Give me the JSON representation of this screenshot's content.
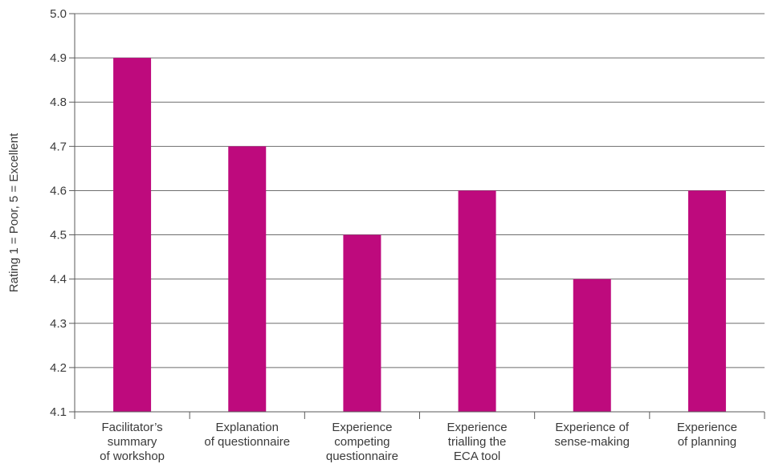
{
  "chart_data": {
    "type": "bar",
    "title": "",
    "xlabel": "",
    "ylabel": "Rating 1 = Poor, 5 = Excellent",
    "categories": [
      [
        "Facilitator’s",
        "summary",
        "of workshop"
      ],
      [
        "Explanation",
        "of questionnaire"
      ],
      [
        "Experience",
        "competing",
        "questionnaire"
      ],
      [
        "Experience",
        "trialling the",
        "ECA tool"
      ],
      [
        "Experience of",
        "sense-making"
      ],
      [
        "Experience",
        "of planning"
      ]
    ],
    "values": [
      4.9,
      4.7,
      4.5,
      4.6,
      4.4,
      4.6
    ],
    "ylim": [
      4.1,
      5.0
    ],
    "yticks": [
      "4.1",
      "4.2",
      "4.3",
      "4.4",
      "4.5",
      "4.6",
      "4.7",
      "4.8",
      "4.9",
      "5.0"
    ],
    "grid": true,
    "legend": "none",
    "colors": {
      "bar": "#BE0A7D",
      "grid": "#6e6e6e",
      "axis": "#5a5a5a"
    }
  }
}
